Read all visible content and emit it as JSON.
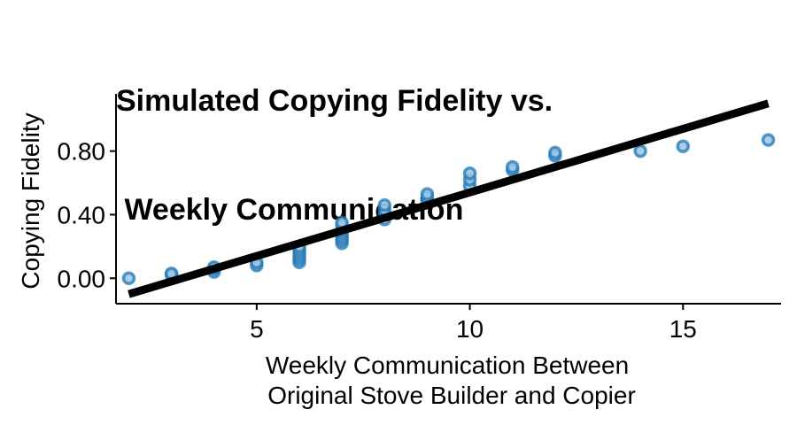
{
  "chart_data": {
    "type": "scatter",
    "title_lines": [
      "Simulated Copying Fidelity vs.",
      " Weekly Communication"
    ],
    "xlabel_lines": [
      "Weekly Communication Between",
      "Original Stove Builder and Copier"
    ],
    "ylabel": "Copying Fidelity",
    "xlim": [
      1.7,
      17.3
    ],
    "ylim": [
      -0.16,
      1.16
    ],
    "x_ticks": [
      5,
      10,
      15
    ],
    "x_tick_labels": [
      "5",
      "10",
      "15"
    ],
    "y_ticks": [
      0.0,
      0.4,
      0.8
    ],
    "y_tick_labels": [
      "0.00",
      "0.40",
      "0.80"
    ],
    "grid": false,
    "point_color": "#1f77b4",
    "line_color": "#000000",
    "points": [
      {
        "x": 2,
        "y": 0.0
      },
      {
        "x": 3,
        "y": 0.02
      },
      {
        "x": 3,
        "y": 0.03
      },
      {
        "x": 4,
        "y": 0.04
      },
      {
        "x": 4,
        "y": 0.06
      },
      {
        "x": 4,
        "y": 0.07
      },
      {
        "x": 5,
        "y": 0.08
      },
      {
        "x": 5,
        "y": 0.1
      },
      {
        "x": 6,
        "y": 0.1
      },
      {
        "x": 6,
        "y": 0.12
      },
      {
        "x": 6,
        "y": 0.14
      },
      {
        "x": 6,
        "y": 0.16
      },
      {
        "x": 6,
        "y": 0.18
      },
      {
        "x": 6,
        "y": 0.2
      },
      {
        "x": 7,
        "y": 0.22
      },
      {
        "x": 7,
        "y": 0.24
      },
      {
        "x": 7,
        "y": 0.26
      },
      {
        "x": 7,
        "y": 0.28
      },
      {
        "x": 7,
        "y": 0.3
      },
      {
        "x": 7,
        "y": 0.33
      },
      {
        "x": 7,
        "y": 0.35
      },
      {
        "x": 8,
        "y": 0.37
      },
      {
        "x": 8,
        "y": 0.4
      },
      {
        "x": 8,
        "y": 0.43
      },
      {
        "x": 8,
        "y": 0.46
      },
      {
        "x": 9,
        "y": 0.48
      },
      {
        "x": 9,
        "y": 0.51
      },
      {
        "x": 9,
        "y": 0.53
      },
      {
        "x": 10,
        "y": 0.58
      },
      {
        "x": 10,
        "y": 0.62
      },
      {
        "x": 10,
        "y": 0.66
      },
      {
        "x": 11,
        "y": 0.68
      },
      {
        "x": 11,
        "y": 0.7
      },
      {
        "x": 12,
        "y": 0.77
      },
      {
        "x": 12,
        "y": 0.79
      },
      {
        "x": 14,
        "y": 0.8
      },
      {
        "x": 15,
        "y": 0.83
      },
      {
        "x": 17,
        "y": 0.87
      }
    ],
    "fit_line": {
      "x": [
        2,
        17
      ],
      "y": [
        -0.1,
        1.1
      ]
    }
  }
}
